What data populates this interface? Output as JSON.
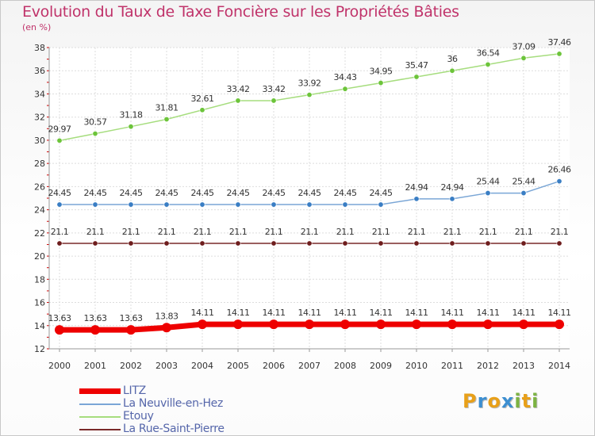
{
  "title": "Evolution du Taux de Taxe Foncière sur les Propriétés Bâties",
  "unit_label": "(en %)",
  "logo": {
    "text": "Proxiti",
    "letters": [
      "P",
      "r",
      "o",
      "x",
      "i",
      "t",
      "i"
    ],
    "colors": [
      "#e8a019",
      "#3d8fd1",
      "#e8a019",
      "#3d8fd1",
      "#7cb342",
      "#e8a019",
      "#7cb342"
    ]
  },
  "chart_data": {
    "type": "line",
    "title": "Evolution du Taux de Taxe Foncière sur les Propriétés Bâties",
    "ylabel": "(en %)",
    "xlabel": "",
    "categories": [
      "2000",
      "2001",
      "2002",
      "2003",
      "2004",
      "2005",
      "2006",
      "2007",
      "2008",
      "2009",
      "2010",
      "2011",
      "2012",
      "2013",
      "2014"
    ],
    "ylim": [
      12,
      38
    ],
    "yticks": [
      12,
      14,
      16,
      18,
      20,
      22,
      24,
      26,
      28,
      30,
      32,
      34,
      36,
      38
    ],
    "grid": true,
    "series": [
      {
        "name": "LITZ",
        "color": "#ee0000",
        "point_color": "#ee0000",
        "width": 7,
        "values": [
          13.63,
          13.63,
          13.63,
          13.83,
          14.11,
          14.11,
          14.11,
          14.11,
          14.11,
          14.11,
          14.11,
          14.11,
          14.11,
          14.11,
          14.11
        ],
        "labels": [
          "13.63",
          "13.63",
          "13.63",
          "13.83",
          "14.11",
          "14.11",
          "14.11",
          "14.11",
          "14.11",
          "14.11",
          "14.11",
          "14.11",
          "14.11",
          "14.11",
          "14.11"
        ]
      },
      {
        "name": "La Neuville-en-Hez",
        "color": "#7aa6d6",
        "point_color": "#3a7ec4",
        "width": 1.5,
        "values": [
          24.45,
          24.45,
          24.45,
          24.45,
          24.45,
          24.45,
          24.45,
          24.45,
          24.45,
          24.45,
          24.94,
          24.94,
          25.44,
          25.44,
          26.46
        ],
        "labels": [
          "24.45",
          "24.45",
          "24.45",
          "24.45",
          "24.45",
          "24.45",
          "24.45",
          "24.45",
          "24.45",
          "24.45",
          "24.94",
          "24.94",
          "25.44",
          "25.44",
          "26.46"
        ]
      },
      {
        "name": "Etouy",
        "color": "#a6dd7e",
        "point_color": "#6cc43a",
        "width": 1.5,
        "values": [
          29.97,
          30.57,
          31.18,
          31.81,
          32.61,
          33.42,
          33.42,
          33.92,
          34.43,
          34.95,
          35.47,
          36,
          36.54,
          37.09,
          37.46
        ],
        "labels": [
          "29.97",
          "30.57",
          "31.18",
          "31.81",
          "32.61",
          "33.42",
          "33.42",
          "33.92",
          "34.43",
          "34.95",
          "35.47",
          "36",
          "36.54",
          "37.09",
          "37.46"
        ]
      },
      {
        "name": "La Rue-Saint-Pierre",
        "color": "#7a2a2a",
        "point_color": "#6e1d1d",
        "width": 1.5,
        "values": [
          21.1,
          21.1,
          21.1,
          21.1,
          21.1,
          21.1,
          21.1,
          21.1,
          21.1,
          21.1,
          21.1,
          21.1,
          21.1,
          21.1,
          21.1
        ],
        "labels": [
          "21.1",
          "21.1",
          "21.1",
          "21.1",
          "21.1",
          "21.1",
          "21.1",
          "21.1",
          "21.1",
          "21.1",
          "21.1",
          "21.1",
          "21.1",
          "21.1",
          "21.1"
        ]
      }
    ],
    "legend_position": "bottom-left"
  }
}
